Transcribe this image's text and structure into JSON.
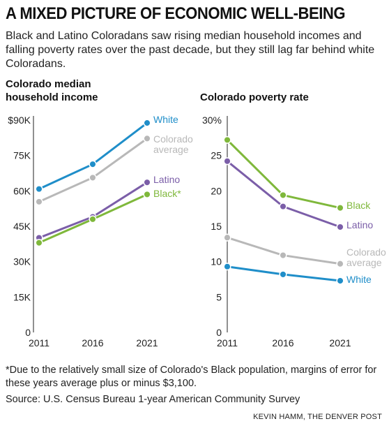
{
  "title": "A MIXED PICTURE OF ECONOMIC WELL-BEING",
  "subtitle": "Black and Latino Coloradans saw rising median household incomes and falling poverty rates over the past decade, but they still lag far behind white Coloradans.",
  "footnote": "*Due to the relatively small size of Colorado's Black population, margins of error for these years average plus or minus $3,100.",
  "source": "Source: U.S. Census Bureau 1-year American Community Survey",
  "credit": "KEVIN HAMM, THE DENVER POST",
  "colors": {
    "White": "#1f8ec9",
    "Colorado average": "#b8b8b8",
    "Latino": "#7b5ea8",
    "Black": "#7fb83b",
    "axis": "#222222"
  },
  "chart_data": [
    {
      "type": "line",
      "title": "Colorado median household income",
      "title_lines": [
        "Colorado median",
        "household income"
      ],
      "x": [
        "2011",
        "2016",
        "2021"
      ],
      "ylim": [
        0,
        90000
      ],
      "yticks": [
        0,
        15000,
        30000,
        45000,
        60000,
        75000,
        90000
      ],
      "ytick_labels": [
        "0",
        "15K",
        "30K",
        "45K",
        "60K",
        "75K",
        "$90K"
      ],
      "grid": false,
      "series": [
        {
          "name": "White",
          "label_lines": [
            "White"
          ],
          "values": [
            60800,
            71300,
            88800
          ]
        },
        {
          "name": "Colorado average",
          "label_lines": [
            "Colorado",
            "average"
          ],
          "values": [
            55400,
            65600,
            82200
          ]
        },
        {
          "name": "Latino",
          "label_lines": [
            "Latino"
          ],
          "values": [
            40100,
            49000,
            63600
          ]
        },
        {
          "name": "Black*",
          "label_lines": [
            "Black*"
          ],
          "values": [
            38000,
            48000,
            58500
          ]
        }
      ]
    },
    {
      "type": "line",
      "title": "Colorado poverty rate",
      "title_lines": [
        "Colorado poverty rate"
      ],
      "x": [
        "2011",
        "2016",
        "2021"
      ],
      "ylim": [
        0,
        30
      ],
      "yticks": [
        0,
        5,
        10,
        15,
        20,
        25,
        30
      ],
      "ytick_labels": [
        "0",
        "5",
        "10",
        "15",
        "20",
        "25",
        "30%"
      ],
      "grid": false,
      "series": [
        {
          "name": "Black",
          "label_lines": [
            "Black"
          ],
          "values": [
            27.2,
            19.4,
            17.6
          ]
        },
        {
          "name": "Latino",
          "label_lines": [
            "Latino"
          ],
          "values": [
            24.2,
            17.8,
            14.9
          ]
        },
        {
          "name": "Colorado average",
          "label_lines": [
            "Colorado",
            "average"
          ],
          "values": [
            13.4,
            10.9,
            9.7
          ]
        },
        {
          "name": "White",
          "label_lines": [
            "White"
          ],
          "values": [
            9.3,
            8.2,
            7.3
          ]
        }
      ]
    }
  ]
}
